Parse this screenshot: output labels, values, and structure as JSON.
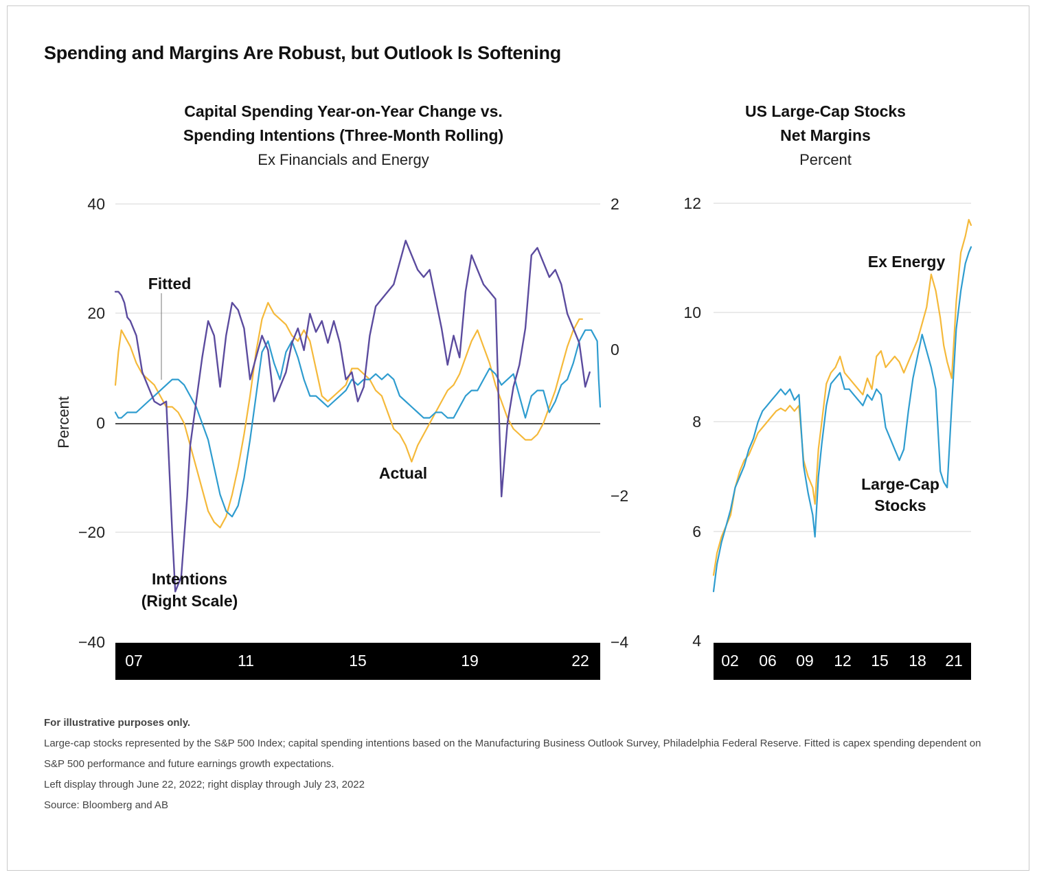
{
  "title": "Spending and Margins Are Robust, but Outlook Is Softening",
  "chart_data": [
    {
      "type": "line",
      "title_line1": "Capital Spending Year-on-Year Change vs.",
      "title_line2": "Spending Intentions (Three-Month Rolling)",
      "subtitle": "Ex Financials and Energy",
      "ylabel": "Percent",
      "ylim": [
        -40,
        40
      ],
      "yticks": [
        "40",
        "20",
        "0",
        "−20",
        "−40"
      ],
      "y2lim": [
        -4,
        2
      ],
      "y2ticks": [
        "2",
        "0",
        "−2",
        "−4"
      ],
      "xlim": [
        2006.5,
        2022.7
      ],
      "xticks": [
        "07",
        "11",
        "15",
        "19",
        "22"
      ],
      "annotations": {
        "fitted": "Fitted",
        "actual": "Actual",
        "intentions_line1": "Intentions",
        "intentions_line2": "(Right Scale)"
      },
      "colors": {
        "intentions": "#5b4b9e",
        "fitted": "#2e9ccf",
        "actual": "#f5b93a"
      },
      "series": [
        {
          "name": "Intentions",
          "axis": "right",
          "x": [
            2006.5,
            2006.6,
            2006.7,
            2006.8,
            2006.9,
            2007.0,
            2007.2,
            2007.4,
            2007.6,
            2007.8,
            2008.0,
            2008.2,
            2008.4,
            2008.5,
            2008.7,
            2008.9,
            2009.0,
            2009.2,
            2009.4,
            2009.6,
            2009.8,
            2010.0,
            2010.2,
            2010.4,
            2010.6,
            2010.8,
            2011.0,
            2011.2,
            2011.4,
            2011.6,
            2011.8,
            2012.0,
            2012.2,
            2012.4,
            2012.6,
            2012.8,
            2013.0,
            2013.2,
            2013.4,
            2013.6,
            2013.8,
            2014.0,
            2014.2,
            2014.4,
            2014.6,
            2014.8,
            2015.0,
            2015.2,
            2015.4,
            2015.6,
            2015.8,
            2016.0,
            2016.2,
            2016.4,
            2016.6,
            2016.8,
            2017.0,
            2017.2,
            2017.4,
            2017.6,
            2017.8,
            2018.0,
            2018.2,
            2018.4,
            2018.6,
            2018.8,
            2019.0,
            2019.2,
            2019.4,
            2019.6,
            2019.8,
            2020.0,
            2020.2,
            2020.4,
            2020.6,
            2020.8,
            2021.0,
            2021.2,
            2021.4,
            2021.6,
            2021.8,
            2022.0,
            2022.2,
            2022.35
          ],
          "y": [
            0.8,
            0.8,
            0.75,
            0.65,
            0.45,
            0.4,
            0.2,
            -0.3,
            -0.5,
            -0.7,
            -0.75,
            -0.7,
            -2.5,
            -3.3,
            -3.1,
            -2.0,
            -1.3,
            -0.7,
            -0.1,
            0.4,
            0.2,
            -0.5,
            0.2,
            0.65,
            0.55,
            0.3,
            -0.4,
            -0.1,
            0.2,
            0.0,
            -0.7,
            -0.5,
            -0.3,
            0.1,
            0.3,
            0.0,
            0.5,
            0.25,
            0.4,
            0.1,
            0.4,
            0.1,
            -0.4,
            -0.3,
            -0.7,
            -0.5,
            0.2,
            0.6,
            0.7,
            0.8,
            0.9,
            1.2,
            1.5,
            1.3,
            1.1,
            1.0,
            1.1,
            0.7,
            0.3,
            -0.2,
            0.2,
            -0.1,
            0.8,
            1.3,
            1.1,
            0.9,
            0.8,
            0.7,
            -2.0,
            -1.0,
            -0.5,
            -0.2,
            0.3,
            1.3,
            1.4,
            1.2,
            1.0,
            1.1,
            0.9,
            0.5,
            0.3,
            0.1,
            -0.5,
            -0.3
          ]
        },
        {
          "name": "Fitted",
          "axis": "left",
          "x": [
            2006.5,
            2006.6,
            2006.7,
            2006.9,
            2007.0,
            2007.2,
            2007.4,
            2007.6,
            2007.8,
            2008.0,
            2008.2,
            2008.4,
            2008.6,
            2008.8,
            2009.0,
            2009.2,
            2009.4,
            2009.6,
            2009.8,
            2010.0,
            2010.2,
            2010.4,
            2010.6,
            2010.8,
            2011.0,
            2011.2,
            2011.4,
            2011.6,
            2011.8,
            2012.0,
            2012.2,
            2012.4,
            2012.6,
            2012.8,
            2013.0,
            2013.2,
            2013.4,
            2013.6,
            2013.8,
            2014.0,
            2014.2,
            2014.4,
            2014.6,
            2014.8,
            2015.0,
            2015.2,
            2015.4,
            2015.6,
            2015.8,
            2016.0,
            2016.2,
            2016.4,
            2016.6,
            2016.8,
            2017.0,
            2017.2,
            2017.4,
            2017.6,
            2017.8,
            2018.0,
            2018.2,
            2018.4,
            2018.6,
            2018.8,
            2019.0,
            2019.2,
            2019.4,
            2019.6,
            2019.8,
            2020.0,
            2020.2,
            2020.4,
            2020.6,
            2020.8,
            2021.0,
            2021.2,
            2021.4,
            2021.6,
            2021.8,
            2022.0,
            2022.2,
            2022.4,
            2022.6
          ],
          "y": [
            2,
            1,
            1,
            2,
            2,
            2,
            3,
            4,
            5,
            6,
            7,
            8,
            8,
            7,
            5,
            3,
            0,
            -3,
            -8,
            -13,
            -16,
            -17,
            -15,
            -10,
            -3,
            5,
            13,
            15,
            11,
            8,
            13,
            15,
            12,
            8,
            5,
            5,
            4,
            3,
            4,
            5,
            6,
            8,
            7,
            8,
            8,
            9,
            8,
            9,
            8,
            5,
            4,
            3,
            2,
            1,
            1,
            2,
            2,
            1,
            1,
            3,
            5,
            6,
            6,
            8,
            10,
            9,
            7,
            8,
            9,
            5,
            1,
            5,
            6,
            6,
            2,
            4,
            7,
            8,
            11,
            15,
            17,
            17,
            15
          ],
          "extra_tail": [
            [
              2022.65,
              8
            ],
            [
              2022.7,
              3
            ]
          ]
        },
        {
          "name": "Actual",
          "axis": "left",
          "x": [
            2006.5,
            2006.6,
            2006.7,
            2006.8,
            2007.0,
            2007.2,
            2007.4,
            2007.6,
            2007.8,
            2008.0,
            2008.2,
            2008.4,
            2008.6,
            2008.8,
            2009.0,
            2009.2,
            2009.4,
            2009.6,
            2009.8,
            2010.0,
            2010.2,
            2010.4,
            2010.6,
            2010.8,
            2011.0,
            2011.2,
            2011.4,
            2011.6,
            2011.8,
            2012.0,
            2012.2,
            2012.4,
            2012.6,
            2012.8,
            2013.0,
            2013.2,
            2013.4,
            2013.6,
            2013.8,
            2014.0,
            2014.2,
            2014.4,
            2014.6,
            2014.8,
            2015.0,
            2015.2,
            2015.4,
            2015.6,
            2015.8,
            2016.0,
            2016.2,
            2016.4,
            2016.6,
            2016.8,
            2017.0,
            2017.2,
            2017.4,
            2017.6,
            2017.8,
            2018.0,
            2018.2,
            2018.4,
            2018.6,
            2018.8,
            2019.0,
            2019.2,
            2019.4,
            2019.6,
            2019.8,
            2020.0,
            2020.2,
            2020.4,
            2020.6,
            2020.8,
            2021.0,
            2021.2,
            2021.4,
            2021.6,
            2021.8,
            2022.0,
            2022.1
          ],
          "y": [
            7,
            13,
            17,
            16,
            14,
            11,
            9,
            8,
            7,
            5,
            3,
            3,
            2,
            0,
            -4,
            -8,
            -12,
            -16,
            -18,
            -19,
            -17,
            -13,
            -8,
            -2,
            5,
            13,
            19,
            22,
            20,
            19,
            18,
            16,
            15,
            17,
            15,
            10,
            5,
            4,
            5,
            6,
            7,
            10,
            10,
            9,
            8,
            6,
            5,
            2,
            -1,
            -2,
            -4,
            -7,
            -4,
            -2,
            0,
            2,
            4,
            6,
            7,
            9,
            12,
            15,
            17,
            14,
            11,
            7,
            4,
            1,
            -1,
            -2,
            -3,
            -3,
            -2,
            0,
            3,
            6,
            10,
            14,
            17,
            19,
            19
          ]
        }
      ]
    },
    {
      "type": "line",
      "title_line1": "US Large-Cap Stocks",
      "title_line2": "Net Margins",
      "subtitle": "Percent",
      "ylim": [
        4,
        12
      ],
      "yticks": [
        "12",
        "10",
        "8",
        "6",
        "4"
      ],
      "xlim": [
        2000.1,
        2022.7
      ],
      "xticks": [
        "02",
        "06",
        "09",
        "12",
        "15",
        "18",
        "21"
      ],
      "annotations": {
        "ex_energy": "Ex Energy",
        "largecap_line1": "Large-Cap",
        "largecap_line2": "Stocks"
      },
      "colors": {
        "ex_energy": "#f5b93a",
        "large_cap": "#2e9ccf"
      },
      "series": [
        {
          "name": "Ex Energy",
          "x": [
            2000.1,
            2000.4,
            2000.8,
            2001.2,
            2001.6,
            2002.0,
            2002.4,
            2002.8,
            2003.2,
            2003.6,
            2004.0,
            2004.4,
            2004.8,
            2005.2,
            2005.6,
            2006.0,
            2006.4,
            2006.8,
            2007.2,
            2007.6,
            2008.0,
            2008.4,
            2008.8,
            2009.0,
            2009.3,
            2009.6,
            2010.0,
            2010.4,
            2010.8,
            2011.2,
            2011.6,
            2012.0,
            2012.4,
            2012.8,
            2013.2,
            2013.6,
            2014.0,
            2014.4,
            2014.8,
            2015.2,
            2015.6,
            2016.0,
            2016.4,
            2016.8,
            2017.2,
            2017.6,
            2018.0,
            2018.4,
            2018.8,
            2019.2,
            2019.6,
            2020.0,
            2020.3,
            2020.6,
            2021.0,
            2021.4,
            2021.8,
            2022.2,
            2022.5,
            2022.7
          ],
          "y": [
            5.2,
            5.6,
            5.9,
            6.1,
            6.3,
            6.8,
            7.1,
            7.3,
            7.4,
            7.6,
            7.8,
            7.9,
            8.0,
            8.1,
            8.2,
            8.25,
            8.2,
            8.3,
            8.2,
            8.3,
            7.3,
            7.0,
            6.8,
            6.5,
            7.5,
            8.0,
            8.7,
            8.9,
            9.0,
            9.2,
            8.9,
            8.8,
            8.7,
            8.6,
            8.5,
            8.8,
            8.6,
            9.2,
            9.3,
            9.0,
            9.1,
            9.2,
            9.1,
            8.9,
            9.1,
            9.3,
            9.5,
            9.8,
            10.1,
            10.7,
            10.4,
            9.9,
            9.4,
            9.1,
            8.8,
            10.2,
            11.1,
            11.4,
            11.7,
            11.6
          ]
        },
        {
          "name": "Large-Cap Stocks",
          "x": [
            2000.1,
            2000.4,
            2000.8,
            2001.2,
            2001.6,
            2002.0,
            2002.4,
            2002.8,
            2003.2,
            2003.6,
            2004.0,
            2004.4,
            2004.8,
            2005.2,
            2005.6,
            2006.0,
            2006.4,
            2006.8,
            2007.2,
            2007.6,
            2008.0,
            2008.4,
            2008.8,
            2009.0,
            2009.3,
            2009.6,
            2010.0,
            2010.4,
            2010.8,
            2011.2,
            2011.6,
            2012.0,
            2012.4,
            2012.8,
            2013.2,
            2013.6,
            2014.0,
            2014.4,
            2014.8,
            2015.2,
            2015.6,
            2016.0,
            2016.4,
            2016.8,
            2017.2,
            2017.6,
            2018.0,
            2018.4,
            2018.8,
            2019.2,
            2019.6,
            2020.0,
            2020.3,
            2020.6,
            2021.0,
            2021.4,
            2021.8,
            2022.2,
            2022.5,
            2022.7
          ],
          "y": [
            4.9,
            5.4,
            5.8,
            6.1,
            6.4,
            6.8,
            7.0,
            7.2,
            7.5,
            7.7,
            8.0,
            8.2,
            8.3,
            8.4,
            8.5,
            8.6,
            8.5,
            8.6,
            8.4,
            8.5,
            7.2,
            6.7,
            6.3,
            5.9,
            7.0,
            7.6,
            8.3,
            8.7,
            8.8,
            8.9,
            8.6,
            8.6,
            8.5,
            8.4,
            8.3,
            8.5,
            8.4,
            8.6,
            8.5,
            7.9,
            7.7,
            7.5,
            7.3,
            7.5,
            8.2,
            8.8,
            9.2,
            9.6,
            9.3,
            9.0,
            8.6,
            7.1,
            6.9,
            6.8,
            8.3,
            9.7,
            10.4,
            10.9,
            11.1,
            11.2
          ]
        }
      ]
    }
  ],
  "notes": {
    "illustrative": "For illustrative purposes only.",
    "line1": "Large-cap stocks represented by the S&P 500 Index; capital spending intentions based on the Manufacturing Business Outlook Survey, Philadelphia Federal Reserve. Fitted is capex spending dependent on S&P 500 performance and future earnings growth expectations.",
    "line2": "Left display through June 22, 2022; right display through July 23, 2022",
    "line3": "Source: Bloomberg and AB"
  }
}
